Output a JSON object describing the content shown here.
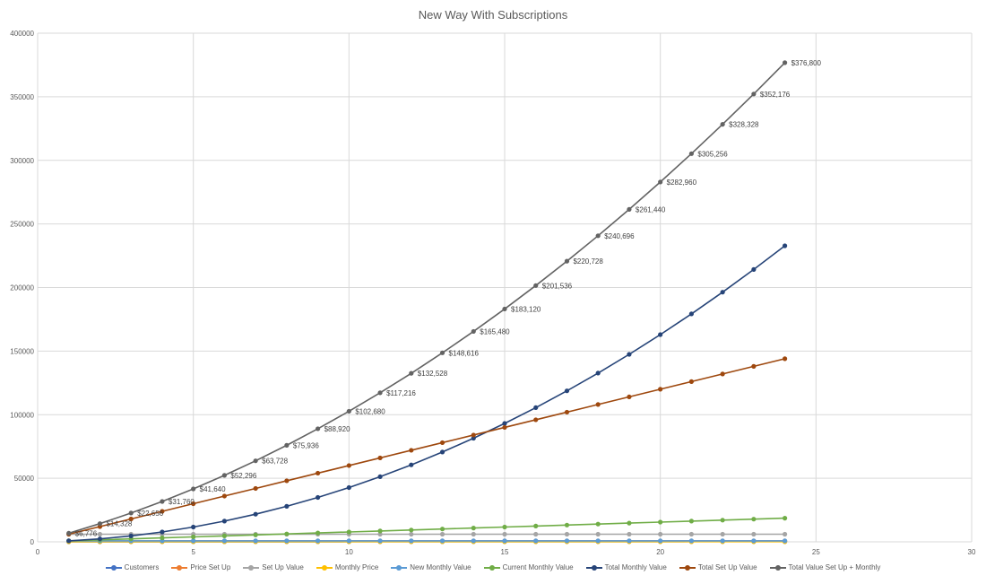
{
  "chart_data": {
    "type": "line",
    "title": "New Way With Subscriptions",
    "xlabel": "",
    "ylabel": "",
    "xlim": [
      0,
      30
    ],
    "ylim": [
      0,
      400000
    ],
    "x_ticks": [
      "0",
      "5",
      "10",
      "15",
      "20",
      "25",
      "30"
    ],
    "y_ticks": [
      "0",
      "50000",
      "100000",
      "150000",
      "200000",
      "250000",
      "300000",
      "350000",
      "400000"
    ],
    "grid": true,
    "legend_position": "bottom",
    "x": [
      1,
      2,
      3,
      4,
      5,
      6,
      7,
      8,
      9,
      10,
      11,
      12,
      13,
      14,
      15,
      16,
      17,
      18,
      19,
      20,
      21,
      22,
      23,
      24
    ],
    "series": [
      {
        "name": "Customers",
        "color": "#4472c4",
        "values": [
          8,
          16,
          24,
          32,
          40,
          48,
          56,
          64,
          72,
          80,
          88,
          96,
          104,
          112,
          120,
          128,
          136,
          144,
          152,
          160,
          168,
          176,
          184,
          192
        ]
      },
      {
        "name": "Price Set Up",
        "color": "#ed7d31",
        "values": [
          750,
          750,
          750,
          750,
          750,
          750,
          750,
          750,
          750,
          750,
          750,
          750,
          750,
          750,
          750,
          750,
          750,
          750,
          750,
          750,
          750,
          750,
          750,
          750
        ]
      },
      {
        "name": "Set Up Value",
        "color": "#a5a5a5",
        "values": [
          6000,
          6000,
          6000,
          6000,
          6000,
          6000,
          6000,
          6000,
          6000,
          6000,
          6000,
          6000,
          6000,
          6000,
          6000,
          6000,
          6000,
          6000,
          6000,
          6000,
          6000,
          6000,
          6000,
          6000
        ]
      },
      {
        "name": "Monthly Price",
        "color": "#ffc000",
        "values": [
          97,
          97,
          97,
          97,
          97,
          97,
          97,
          97,
          97,
          97,
          97,
          97,
          97,
          97,
          97,
          97,
          97,
          97,
          97,
          97,
          97,
          97,
          97,
          97
        ]
      },
      {
        "name": "New Monthly Value",
        "color": "#5b9bd5",
        "values": [
          776,
          776,
          776,
          776,
          776,
          776,
          776,
          776,
          776,
          776,
          776,
          776,
          776,
          776,
          776,
          776,
          776,
          776,
          776,
          776,
          776,
          776,
          776,
          776
        ]
      },
      {
        "name": "Current Monthly Value",
        "color": "#70ad47",
        "values": [
          776,
          1552,
          2328,
          3104,
          3880,
          4656,
          5432,
          6208,
          6984,
          7760,
          8536,
          9312,
          10088,
          10864,
          11640,
          12416,
          13192,
          13968,
          14744,
          15520,
          16296,
          17072,
          17848,
          18624
        ]
      },
      {
        "name": "Total Monthly Value",
        "color": "#264478",
        "values": [
          776,
          2328,
          4656,
          7760,
          11640,
          16296,
          21728,
          27936,
          34920,
          42680,
          51216,
          60528,
          70616,
          81480,
          93120,
          105536,
          118728,
          132696,
          147440,
          162960,
          179256,
          196328,
          214176,
          232800
        ]
      },
      {
        "name": "Total Set Up Value",
        "color": "#9e480e",
        "values": [
          6000,
          12000,
          18000,
          24000,
          30000,
          36000,
          42000,
          48000,
          54000,
          60000,
          66000,
          72000,
          78000,
          84000,
          90000,
          96000,
          102000,
          108000,
          114000,
          120000,
          126000,
          132000,
          138000,
          144000
        ]
      },
      {
        "name": "Total Value Set Up + Monthly",
        "color": "#636363",
        "values": [
          6776,
          14328,
          22656,
          31760,
          41640,
          52296,
          63728,
          75936,
          88920,
          102680,
          117216,
          132528,
          148616,
          165480,
          183120,
          201536,
          220728,
          240696,
          261440,
          282960,
          305256,
          328328,
          352176,
          376800
        ],
        "data_labels": [
          "$6,776",
          "$14,328",
          "$22,656",
          "$31,760",
          "$41,640",
          "$52,296",
          "$63,728",
          "$75,936",
          "$88,920",
          "$102,680",
          "$117,216",
          "$132,528",
          "$148,616",
          "$165,480",
          "$183,120",
          "$201,536",
          "$220,728",
          "$240,696",
          "$261,440",
          "$282,960",
          "$305,256",
          "$328,328",
          "$352,176",
          "$376,800"
        ]
      }
    ]
  }
}
